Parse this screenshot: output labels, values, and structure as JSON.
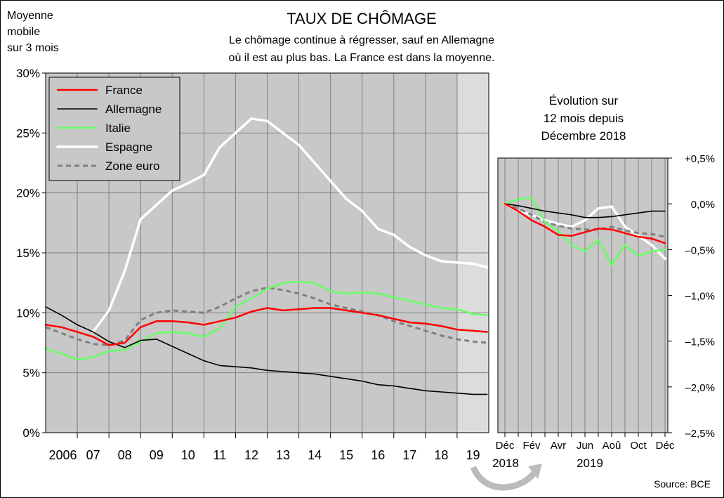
{
  "title": "TAUX DE CHÔMAGE",
  "subtitle_line1": "Le chômage continue à régresser, sauf en Allemagne",
  "subtitle_line2": "où il est au plus bas. La France est dans la moyenne.",
  "ylabel_lines": [
    "Moyenne",
    "mobile",
    "sur 3 mois"
  ],
  "source": "Source: BCE",
  "colors": {
    "France": "#ff0000",
    "Allemagne": "#000000",
    "Italie": "#66ff66",
    "Espagne": "#ffffff",
    "Zone euro": "#808080",
    "plot_bg": "#c8c8c8",
    "shade_bg": "#dcdcdc"
  },
  "chart_data": [
    {
      "type": "line",
      "title": "TAUX DE CHÔMAGE",
      "ylim": [
        0,
        30
      ],
      "xlim": [
        2006.0,
        2020.0
      ],
      "y_ticks": [
        "0%",
        "5%",
        "10%",
        "15%",
        "20%",
        "25%",
        "30%"
      ],
      "x_ticks": [
        "2006",
        "07",
        "08",
        "09",
        "10",
        "11",
        "12",
        "13",
        "14",
        "15",
        "16",
        "17",
        "18",
        "19"
      ],
      "grid": true,
      "legend": "top-left",
      "x": [
        2006.0,
        2006.5,
        2007.0,
        2007.5,
        2008.0,
        2008.5,
        2009.0,
        2009.5,
        2010.0,
        2010.5,
        2011.0,
        2011.5,
        2012.0,
        2012.5,
        2013.0,
        2013.5,
        2014.0,
        2014.5,
        2015.0,
        2015.5,
        2016.0,
        2016.5,
        2017.0,
        2017.5,
        2018.0,
        2018.5,
        2019.0,
        2019.5,
        2019.95
      ],
      "series": [
        {
          "name": "France",
          "values": [
            9.0,
            8.8,
            8.4,
            8.0,
            7.3,
            7.5,
            8.8,
            9.3,
            9.3,
            9.2,
            9.0,
            9.3,
            9.6,
            10.1,
            10.4,
            10.2,
            10.3,
            10.4,
            10.4,
            10.2,
            10.0,
            9.8,
            9.5,
            9.2,
            9.1,
            8.9,
            8.6,
            8.5,
            8.4
          ]
        },
        {
          "name": "Allemagne",
          "values": [
            10.5,
            9.8,
            9.0,
            8.4,
            7.6,
            7.1,
            7.7,
            7.8,
            7.2,
            6.6,
            6.0,
            5.6,
            5.5,
            5.4,
            5.2,
            5.1,
            5.0,
            4.9,
            4.7,
            4.5,
            4.3,
            4.0,
            3.9,
            3.7,
            3.5,
            3.4,
            3.3,
            3.2,
            3.2
          ]
        },
        {
          "name": "Italie",
          "values": [
            7.0,
            6.6,
            6.1,
            6.3,
            6.8,
            6.9,
            7.6,
            8.3,
            8.4,
            8.3,
            8.0,
            8.7,
            10.5,
            11.2,
            12.0,
            12.5,
            12.6,
            12.5,
            11.8,
            11.6,
            11.7,
            11.6,
            11.3,
            11.0,
            10.7,
            10.4,
            10.3,
            9.9,
            9.8
          ]
        },
        {
          "name": "Espagne",
          "values": [
            null,
            null,
            null,
            8.4,
            10.2,
            13.5,
            17.8,
            19.0,
            20.2,
            20.8,
            21.5,
            23.8,
            25.0,
            26.2,
            26.0,
            25.0,
            24.0,
            22.5,
            21.0,
            19.5,
            18.5,
            17.0,
            16.5,
            15.5,
            14.8,
            14.3,
            14.2,
            14.1,
            13.8
          ]
        },
        {
          "name": "Zone euro",
          "values": [
            8.8,
            8.3,
            7.8,
            7.4,
            7.3,
            7.7,
            9.4,
            10.0,
            10.2,
            10.1,
            10.0,
            10.5,
            11.2,
            11.8,
            12.1,
            11.9,
            11.6,
            11.2,
            10.7,
            10.4,
            10.1,
            9.8,
            9.3,
            8.9,
            8.5,
            8.1,
            7.8,
            7.6,
            7.5
          ]
        }
      ]
    },
    {
      "type": "line",
      "title_lines": [
        "Évolution sur",
        "12 mois depuis",
        "Décembre 2018"
      ],
      "ylim": [
        -2.5,
        0.5
      ],
      "y_ticks": [
        "+0,5%",
        "0,0%",
        "–0,5%",
        "–1,0%",
        "–1,5%",
        "–2,0%",
        "–2,5%"
      ],
      "x_ticks": [
        "Déc",
        "Fév",
        "Avr",
        "Jun",
        "Aoû",
        "Oct",
        "Déc"
      ],
      "x_years": [
        "2018",
        "2019"
      ],
      "grid": true,
      "x": [
        0,
        1,
        2,
        3,
        4,
        5,
        6,
        7,
        8,
        9,
        10,
        11,
        12
      ],
      "series": [
        {
          "name": "France",
          "values": [
            0.0,
            -0.08,
            -0.18,
            -0.25,
            -0.34,
            -0.35,
            -0.31,
            -0.27,
            -0.28,
            -0.32,
            -0.36,
            -0.38,
            -0.43
          ]
        },
        {
          "name": "Allemagne",
          "values": [
            0.0,
            -0.02,
            -0.05,
            -0.08,
            -0.1,
            -0.12,
            -0.15,
            -0.15,
            -0.14,
            -0.12,
            -0.1,
            -0.08,
            -0.08
          ]
        },
        {
          "name": "Italie",
          "values": [
            0.0,
            0.05,
            0.07,
            -0.2,
            -0.3,
            -0.45,
            -0.52,
            -0.39,
            -0.67,
            -0.45,
            -0.57,
            -0.52,
            -0.5
          ]
        },
        {
          "name": "Espagne",
          "values": [
            0.0,
            -0.08,
            -0.12,
            -0.18,
            -0.22,
            -0.25,
            -0.18,
            -0.05,
            -0.03,
            -0.25,
            -0.35,
            -0.45,
            -0.6
          ]
        },
        {
          "name": "Zone euro",
          "values": [
            0.0,
            -0.05,
            -0.12,
            -0.2,
            -0.24,
            -0.27,
            -0.28,
            -0.28,
            -0.25,
            -0.29,
            -0.32,
            -0.33,
            -0.36
          ]
        }
      ]
    }
  ]
}
